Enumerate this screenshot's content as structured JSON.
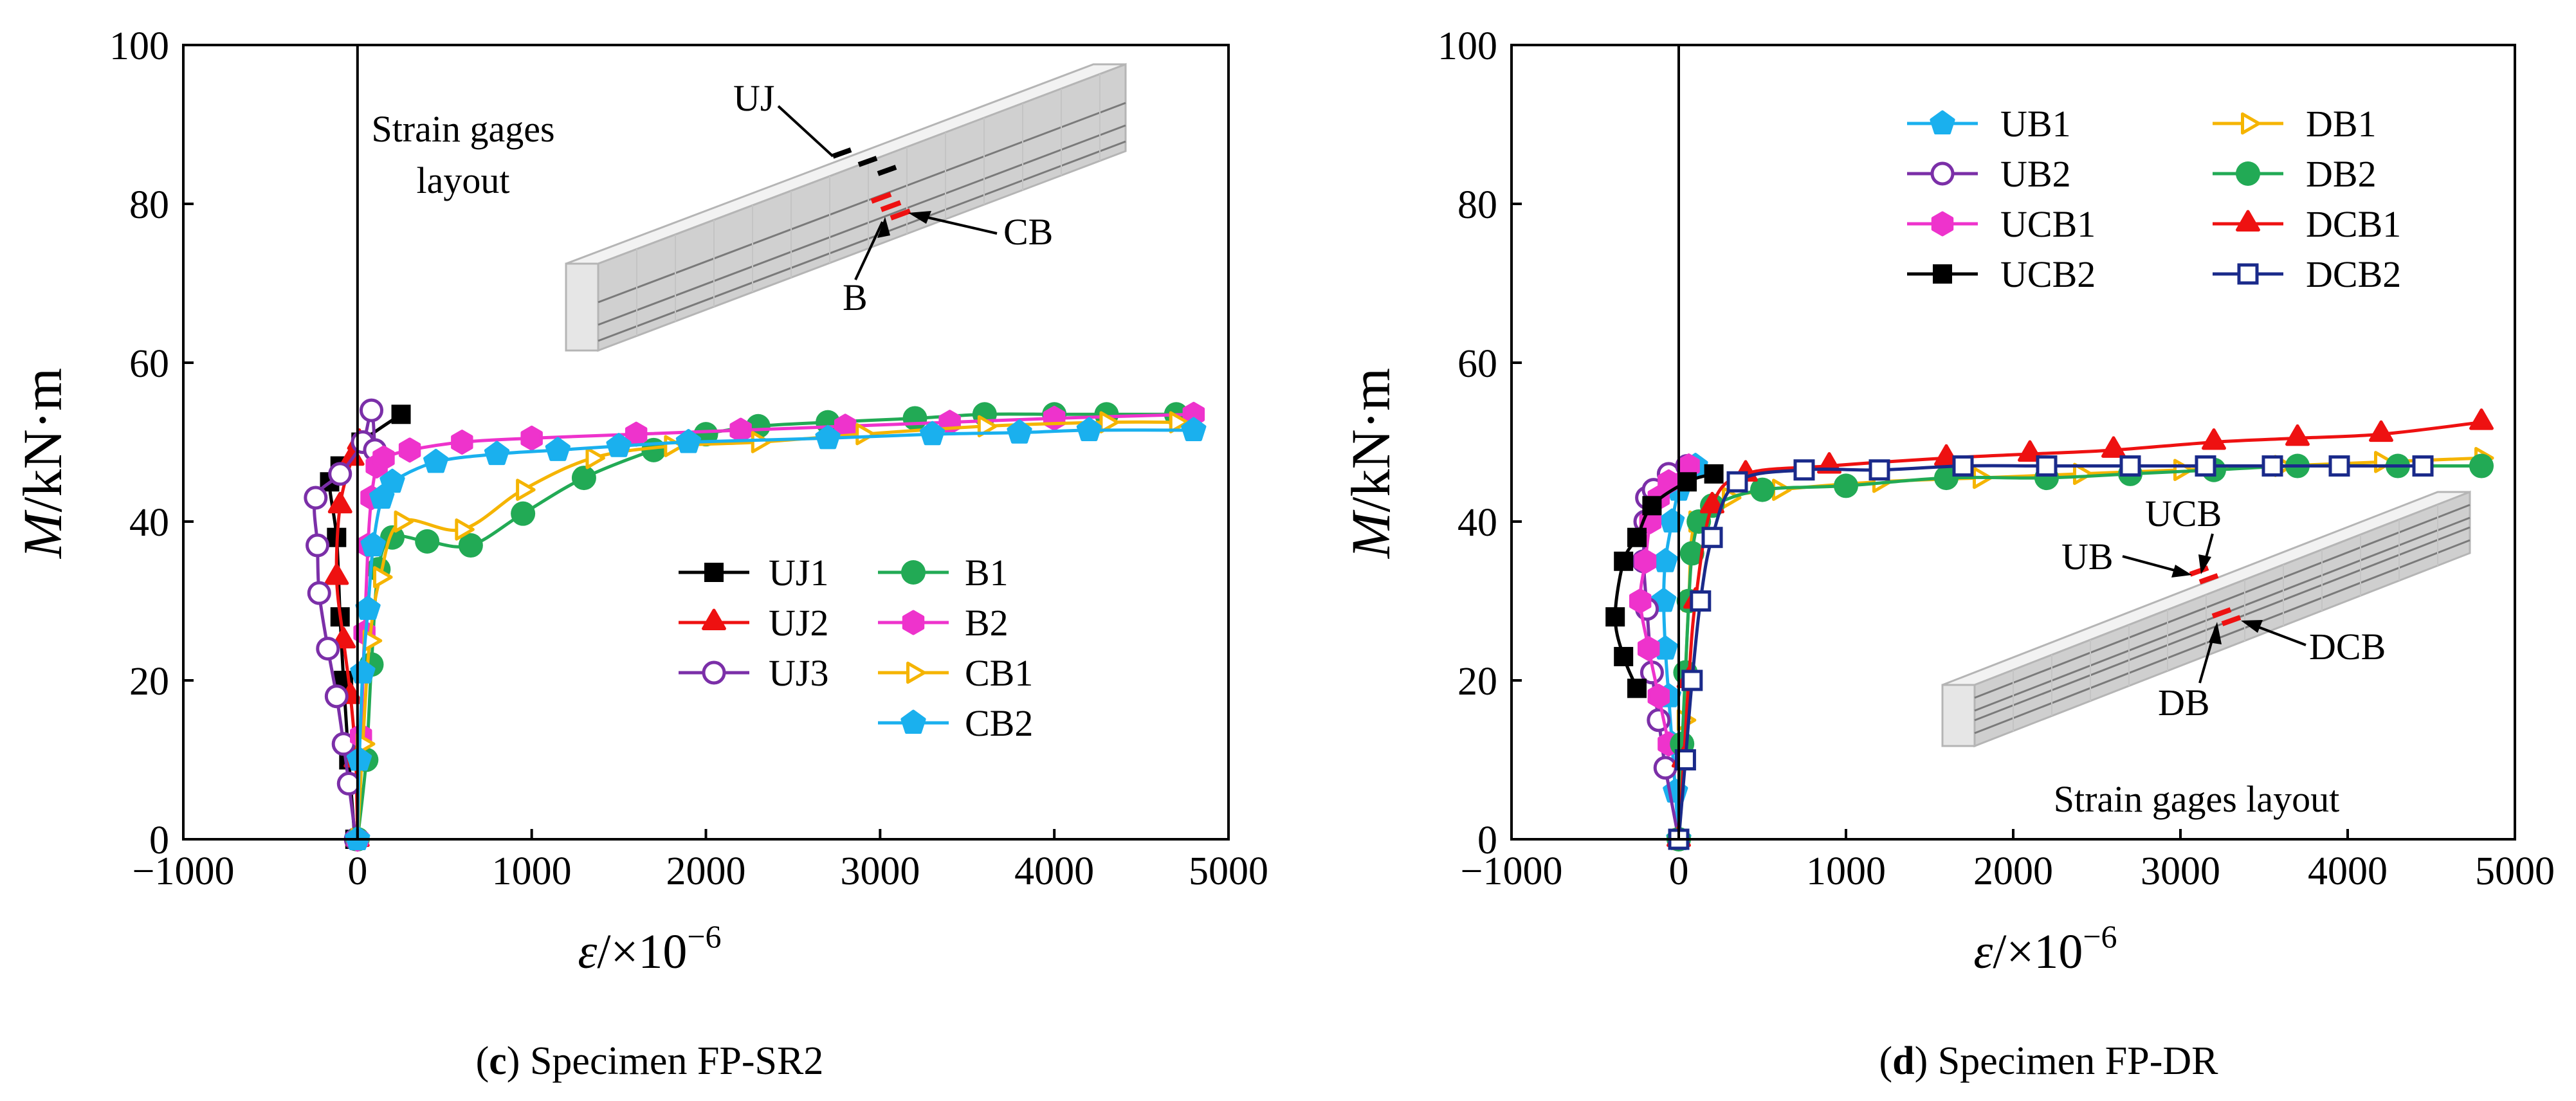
{
  "chart_data": [
    {
      "type": "line",
      "caption_letter": "c",
      "caption_text": "Specimen FP-SR2",
      "xlabel_sym": "ε",
      "xlabel_rest": "/×10",
      "xlabel_exp": "−6",
      "ylabel_sym": "M",
      "ylabel_rest": "/kN·m",
      "xlim": [
        -1000,
        5000
      ],
      "ylim": [
        0,
        100
      ],
      "xticks": [
        -1000,
        0,
        1000,
        2000,
        3000,
        4000,
        5000
      ],
      "xtick_labels": [
        "−1000",
        "0",
        "1000",
        "2000",
        "3000",
        "4000",
        "5000"
      ],
      "yticks": [
        0,
        20,
        40,
        60,
        80,
        100
      ],
      "ytick_labels": [
        "0",
        "20",
        "40",
        "60",
        "80",
        "100"
      ],
      "legend_position": "center-right",
      "inset": {
        "title_lines": [
          "Strain gages",
          "layout"
        ],
        "labels": {
          "uj": "UJ",
          "cb": "CB",
          "b": "B"
        }
      },
      "series": [
        {
          "name": "UJ1",
          "color": "#000000",
          "marker": "square",
          "x": [
            -15,
            -50,
            -80,
            -100,
            -120,
            -160,
            -100,
            20,
            250
          ],
          "y": [
            0,
            10,
            20,
            28,
            38,
            45,
            47,
            50,
            53.5
          ]
        },
        {
          "name": "UJ2",
          "color": "#ee1111",
          "marker": "triangle",
          "x": [
            0,
            -10,
            -40,
            -80,
            -120,
            -100,
            -30,
            10
          ],
          "y": [
            0,
            10,
            18,
            25,
            33,
            42,
            48,
            50
          ]
        },
        {
          "name": "UJ3",
          "color": "#7b2fa8",
          "marker": "circle-open",
          "x": [
            -10,
            -50,
            -80,
            -120,
            -170,
            -220,
            -230,
            -240,
            -100,
            30,
            80,
            100
          ],
          "y": [
            0,
            7,
            12,
            18,
            24,
            31,
            37,
            43,
            46,
            50,
            54,
            49
          ]
        },
        {
          "name": "B1",
          "color": "#22aa55",
          "marker": "circle",
          "x": [
            0,
            50,
            80,
            120,
            200,
            400,
            650,
            950,
            1300,
            1700,
            2000,
            2300,
            2700,
            3200,
            3600,
            4000,
            4300,
            4700
          ],
          "y": [
            0,
            10,
            22,
            34,
            38,
            37.5,
            37,
            41,
            45.5,
            49,
            51,
            52,
            52.5,
            53,
            53.5,
            53.5,
            53.5,
            53.5
          ]
        },
        {
          "name": "B2",
          "color": "#ee33cc",
          "marker": "hexagon",
          "x": [
            0,
            20,
            40,
            60,
            80,
            110,
            150,
            300,
            600,
            1000,
            1600,
            2200,
            2800,
            3400,
            4000,
            4800
          ],
          "y": [
            0,
            13,
            26,
            37,
            43,
            47,
            48,
            49,
            50,
            50.5,
            51,
            51.5,
            52,
            52.5,
            53,
            53.5
          ]
        },
        {
          "name": "CB1",
          "color": "#f5b400",
          "marker": "triangle-right-open",
          "x": [
            0,
            30,
            70,
            130,
            250,
            600,
            950,
            1350,
            1800,
            2300,
            2900,
            3600,
            4300,
            4700
          ],
          "y": [
            0,
            12,
            25,
            33,
            40,
            39,
            44,
            48,
            49.5,
            50,
            51,
            52,
            52.5,
            52.5
          ]
        },
        {
          "name": "CB2",
          "color": "#1ab0ee",
          "marker": "pentagon",
          "x": [
            0,
            10,
            30,
            60,
            90,
            140,
            200,
            450,
            800,
            1150,
            1500,
            1900,
            2700,
            3300,
            3800,
            4200,
            4800
          ],
          "y": [
            0,
            10,
            21,
            29,
            37,
            43,
            45,
            47.5,
            48.5,
            49,
            49.5,
            50,
            50.5,
            51,
            51.2,
            51.5,
            51.5
          ]
        }
      ]
    },
    {
      "type": "line",
      "caption_letter": "d",
      "caption_text": "Specimen FP-DR",
      "xlabel_sym": "ε",
      "xlabel_rest": "/×10",
      "xlabel_exp": "−6",
      "ylabel_sym": "M",
      "ylabel_rest": "/kN·m",
      "xlim": [
        -1000,
        5000
      ],
      "ylim": [
        0,
        100
      ],
      "xticks": [
        -1000,
        0,
        1000,
        2000,
        3000,
        4000,
        5000
      ],
      "xtick_labels": [
        "−1000",
        "0",
        "1000",
        "2000",
        "3000",
        "4000",
        "5000"
      ],
      "yticks": [
        0,
        20,
        40,
        60,
        80,
        100
      ],
      "ytick_labels": [
        "0",
        "20",
        "40",
        "60",
        "80",
        "100"
      ],
      "legend_position": "top-right",
      "inset": {
        "title_lines": [
          "Strain gages layout"
        ],
        "labels": {
          "ucb": "UCB",
          "ub": "UB",
          "dcb": "DCB",
          "db": "DB"
        }
      },
      "series": [
        {
          "name": "UB1",
          "color": "#1ab0ee",
          "marker": "pentagon",
          "x": [
            0,
            -20,
            -40,
            -60,
            -80,
            -90,
            -80,
            -40,
            0,
            50,
            100
          ],
          "y": [
            0,
            6,
            12,
            18,
            24,
            30,
            35,
            40,
            44,
            46,
            47
          ]
        },
        {
          "name": "UB2",
          "color": "#7b2fa8",
          "marker": "circle-open",
          "x": [
            0,
            -80,
            -120,
            -160,
            -190,
            -210,
            -200,
            -190,
            -150,
            -60,
            50
          ],
          "y": [
            0,
            9,
            15,
            21,
            29,
            35,
            40,
            43,
            44,
            46,
            47
          ]
        },
        {
          "name": "UCB1",
          "color": "#ee33cc",
          "marker": "hexagon",
          "x": [
            -60,
            -120,
            -180,
            -230,
            -200,
            -170,
            -120,
            -60,
            60
          ],
          "y": [
            12,
            18,
            24,
            30,
            35,
            40,
            43,
            45,
            47
          ]
        },
        {
          "name": "UCB2",
          "color": "#000000",
          "marker": "square",
          "x": [
            -250,
            -330,
            -380,
            -330,
            -250,
            -160,
            50,
            210
          ],
          "y": [
            19,
            23,
            28,
            35,
            38,
            42,
            45,
            46
          ]
        },
        {
          "name": "DB1",
          "color": "#f5b400",
          "marker": "triangle-right-open",
          "x": [
            0,
            30,
            60,
            100,
            300,
            600,
            1200,
            1800,
            2400,
            3000,
            3600,
            4200,
            4800
          ],
          "y": [
            0,
            15,
            30,
            40,
            43,
            44,
            45,
            45.5,
            46,
            46.5,
            47,
            47.5,
            48
          ]
        },
        {
          "name": "DB2",
          "color": "#22aa55",
          "marker": "circle",
          "x": [
            0,
            20,
            40,
            60,
            80,
            120,
            200,
            500,
            1000,
            1600,
            2200,
            2700,
            3200,
            3700,
            4300,
            4800
          ],
          "y": [
            0,
            12,
            21,
            30,
            36,
            40,
            42,
            44,
            44.5,
            45.5,
            45.5,
            46,
            46.5,
            47,
            47,
            47
          ]
        },
        {
          "name": "DCB1",
          "color": "#ee1111",
          "marker": "triangle",
          "x": [
            0,
            30,
            60,
            100,
            200,
            400,
            900,
            1600,
            2100,
            2600,
            3200,
            3700,
            4200,
            4800
          ],
          "y": [
            0,
            10,
            20,
            30,
            42,
            46,
            47,
            48,
            48.5,
            49,
            50,
            50.5,
            51,
            52.5
          ]
        },
        {
          "name": "DCB2",
          "color": "#1a2a8a",
          "marker": "square-open",
          "x": [
            0,
            40,
            80,
            130,
            200,
            350,
            750,
            1200,
            1700,
            2200,
            2700,
            3150,
            3550,
            3950,
            4450
          ],
          "y": [
            0,
            10,
            20,
            30,
            38,
            45,
            46.5,
            46.5,
            47,
            47,
            47,
            47,
            47,
            47,
            47
          ]
        }
      ]
    }
  ]
}
